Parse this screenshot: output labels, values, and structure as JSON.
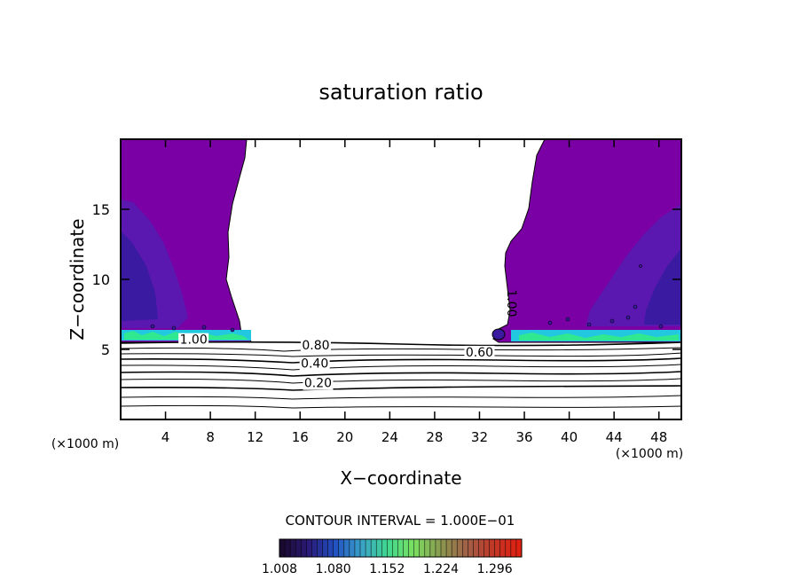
{
  "chart_data": {
    "type": "heatmap",
    "title": "saturation ratio",
    "xlabel": "X−coordinate",
    "ylabel": "Z−coordinate",
    "x_unit_left": "(×1000 m)",
    "x_unit_right": "(×1000 m)",
    "xlim": [
      0,
      50
    ],
    "ylim": [
      0,
      20
    ],
    "x_ticks": [
      "4",
      "8",
      "12",
      "16",
      "20",
      "24",
      "28",
      "32",
      "36",
      "40",
      "44",
      "48"
    ],
    "x_tick_values": [
      4,
      8,
      12,
      16,
      20,
      24,
      28,
      32,
      36,
      40,
      44,
      48
    ],
    "y_ticks": [
      "5",
      "10",
      "15"
    ],
    "y_tick_values": [
      5,
      10,
      15
    ],
    "contour_levels": [
      0.1,
      0.2,
      0.3,
      0.4,
      0.5,
      0.6,
      0.7,
      0.8,
      0.9,
      1.0
    ],
    "contour_labels": [
      {
        "text": "1.00",
        "x": 6.5,
        "z": 5.4
      },
      {
        "text": "0.80",
        "x": 17.4,
        "z": 5.0
      },
      {
        "text": "0.40",
        "x": 17.3,
        "z": 3.7
      },
      {
        "text": "0.20",
        "x": 17.6,
        "z": 2.3
      },
      {
        "text": "0.60",
        "x": 32.0,
        "z": 4.5
      },
      {
        "text": "1.00",
        "x": 34.5,
        "z": 8.3
      }
    ],
    "contour_interval_text": "CONTOUR INTERVAL = 1.000E−01",
    "colorbar": {
      "ticks": [
        "1.008",
        "1.080",
        "1.152",
        "1.224",
        "1.296"
      ],
      "range": [
        1.008,
        1.332
      ],
      "colors": [
        "#1a0a30",
        "#2a1a78",
        "#2050c0",
        "#3aa0c8",
        "#40d890",
        "#7ae060",
        "#8a9a50",
        "#a06048",
        "#c03828",
        "#e02010"
      ]
    },
    "fill_colors": {
      "supersaturated_low": "#7a00a6",
      "supersaturated_mid": "#5a18b0",
      "supersaturated_deep": "#3a1aa0",
      "cloud_base_cyan": "#22c8e0",
      "cloud_base_green": "#30e890"
    }
  }
}
